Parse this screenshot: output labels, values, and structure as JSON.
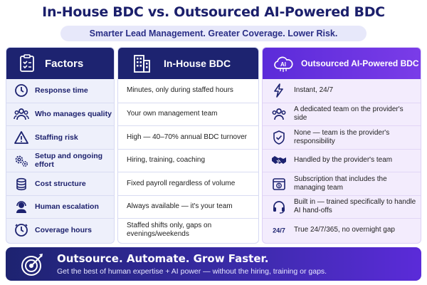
{
  "title": "In-House BDC vs. Outsourced AI-Powered BDC",
  "subtitle": "Smarter Lead Management. Greater Coverage. Lower Risk.",
  "columns": {
    "factors": {
      "header": "Factors",
      "icon": "clipboard-checklist-icon"
    },
    "inhouse": {
      "header": "In-House BDC",
      "icon": "office-building-icon"
    },
    "ai": {
      "header": "Outsourced AI-Powered BDC",
      "icon": "ai-cloud-icon",
      "icon_text": "AI"
    }
  },
  "rows": [
    {
      "factor": "Response time",
      "factor_icon": "clock-icon",
      "inhouse": "Minutes, only during staffed hours",
      "ai": "Instant, 24/7",
      "ai_icon": "lightning-icon"
    },
    {
      "factor": "Who manages quality",
      "factor_icon": "people-group-icon",
      "inhouse": "Your own management team",
      "ai": "A dedicated team on the provider's side",
      "ai_icon": "team-icon"
    },
    {
      "factor": "Staffing risk",
      "factor_icon": "warning-icon",
      "inhouse": "High — 40–70% annual BDC turnover",
      "ai": "None — team is the provider's responsibility",
      "ai_icon": "shield-check-icon"
    },
    {
      "factor": "Setup and ongoing effort",
      "factor_icon": "gears-icon",
      "inhouse": "Hiring, training, coaching",
      "ai": "Handled by the provider's team",
      "ai_icon": "handshake-icon"
    },
    {
      "factor": "Cost structure",
      "factor_icon": "coins-icon",
      "inhouse": "Fixed payroll regardless of volume",
      "ai": "Subscription that includes the managing team",
      "ai_icon": "subscription-icon"
    },
    {
      "factor": "Human escalation",
      "factor_icon": "headset-agent-icon",
      "inhouse": "Always available — it's your team",
      "ai": "Built in — trained specifically to handle AI hand-offs",
      "ai_icon": "headset-icon"
    },
    {
      "factor": "Coverage hours",
      "factor_icon": "clock-icon",
      "inhouse": "Staffed shifts only, gaps on evenings/weekends",
      "ai": "True 24/7/365, no overnight gap",
      "ai_icon": "24-7-icon",
      "ai_icon_text": "24/7"
    }
  ],
  "banner": {
    "title": "Outsource. Automate. Grow Faster.",
    "subtitle": "Get the best of human expertise + AI power — without the hiring, training or gaps.",
    "icon": "target-arrow-icon"
  },
  "colors": {
    "navy": "#1d2370",
    "purple": "#5b2bd9",
    "factor_bg": "#eef0fb",
    "ai_bg": "#f3ecfd"
  }
}
